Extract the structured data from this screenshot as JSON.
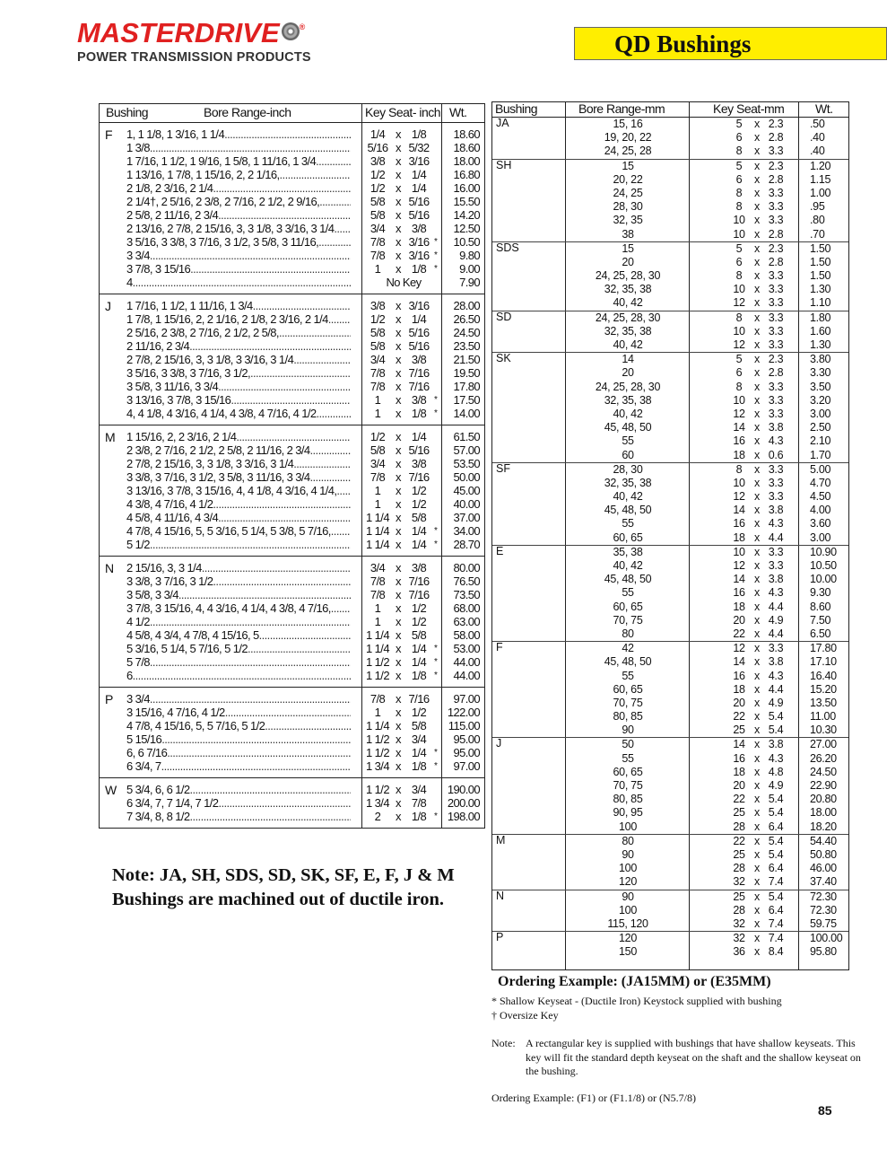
{
  "logo": {
    "brand": "MASTERDRIVE",
    "tagline": "POWER TRANSMISSION PRODUCTS",
    "brand_color": "#e02020"
  },
  "title": "QD Bushings",
  "title_bg": "#ffee00",
  "inch_table": {
    "headers": {
      "bushing": "Bushing",
      "bore": "Bore Range-inch",
      "key": "Key Seat- inch",
      "wt": "Wt."
    },
    "groups": [
      {
        "code": "F",
        "rows": [
          {
            "bore": "1, 1 1/8, 1 3/16, 1 1/4",
            "k1": "1/4",
            "k2": "1/8",
            "wt": "18.60"
          },
          {
            "bore": "1 3/8",
            "k1": "5/16",
            "k2": "5/32",
            "wt": "18.60"
          },
          {
            "bore": "1 7/16, 1 1/2, 1 9/16, 1 5/8, 1 11/16, 1 3/4",
            "k1": "3/8",
            "k2": "3/16",
            "wt": "18.00"
          },
          {
            "bore": "1 13/16, 1 7/8, 1 15/16, 2, 2 1/16,",
            "k1": "1/2",
            "k2": "1/4",
            "wt": "16.80"
          },
          {
            "bore": "2 1/8, 2 3/16, 2 1/4",
            "k1": "1/2",
            "k2": "1/4",
            "wt": "16.00"
          },
          {
            "bore": "2 1/4†, 2 5/16, 2 3/8, 2 7/16, 2 1/2, 2 9/16,",
            "k1": "5/8",
            "k2": "5/16",
            "wt": "15.50"
          },
          {
            "bore": "2 5/8, 2 11/16, 2 3/4",
            "k1": "5/8",
            "k2": "5/16",
            "wt": "14.20"
          },
          {
            "bore": "2 13/16, 2 7/8, 2 15/16, 3, 3 1/8, 3 3/16, 3 1/4",
            "k1": "3/4",
            "k2": "3/8",
            "wt": "12.50"
          },
          {
            "bore": "3 5/16, 3 3/8, 3 7/16, 3 1/2, 3 5/8, 3 11/16,",
            "k1": "7/8",
            "k2": "3/16",
            "star": "*",
            "wt": "10.50"
          },
          {
            "bore": "3 3/4",
            "k1": "7/8",
            "k2": "3/16",
            "star": "*",
            "wt": "9.80"
          },
          {
            "bore": "3 7/8, 3 15/16",
            "k1": "1",
            "k2": "1/8",
            "star": "*",
            "wt": "9.00"
          },
          {
            "bore": "4",
            "nokey": "No Key",
            "wt": "7.90"
          }
        ]
      },
      {
        "code": "J",
        "rows": [
          {
            "bore": "1 7/16, 1 1/2, 1 11/16, 1 3/4",
            "k1": "3/8",
            "k2": "3/16",
            "wt": "28.00"
          },
          {
            "bore": "1 7/8, 1 15/16, 2, 2 1/16, 2 1/8, 2 3/16, 2 1/4",
            "k1": "1/2",
            "k2": "1/4",
            "wt": "26.50"
          },
          {
            "bore": "2 5/16, 2 3/8, 2 7/16, 2 1/2, 2 5/8,",
            "k1": "5/8",
            "k2": "5/16",
            "wt": "24.50"
          },
          {
            "bore": "2 11/16, 2 3/4",
            "k1": "5/8",
            "k2": "5/16",
            "wt": "23.50"
          },
          {
            "bore": "2 7/8, 2 15/16, 3, 3 1/8, 3 3/16, 3 1/4",
            "k1": "3/4",
            "k2": "3/8",
            "wt": "21.50"
          },
          {
            "bore": "3 5/16, 3 3/8, 3 7/16, 3 1/2,",
            "k1": "7/8",
            "k2": "7/16",
            "wt": "19.50"
          },
          {
            "bore": "3 5/8, 3 11/16, 3 3/4",
            "k1": "7/8",
            "k2": "7/16",
            "wt": "17.80"
          },
          {
            "bore": "3 13/16, 3 7/8, 3 15/16",
            "k1": "1",
            "k2": "3/8",
            "star": "*",
            "wt": "17.50"
          },
          {
            "bore": "4, 4 1/8, 4 3/16, 4 1/4, 4 3/8, 4 7/16, 4 1/2",
            "k1": "1",
            "k2": "1/8",
            "star": "*",
            "wt": "14.00"
          }
        ]
      },
      {
        "code": "M",
        "rows": [
          {
            "bore": "1 15/16, 2, 2 3/16, 2 1/4",
            "k1": "1/2",
            "k2": "1/4",
            "wt": "61.50"
          },
          {
            "bore": "2 3/8, 2 7/16, 2 1/2, 2 5/8, 2 11/16, 2 3/4",
            "k1": "5/8",
            "k2": "5/16",
            "wt": "57.00"
          },
          {
            "bore": "2 7/8, 2 15/16, 3, 3 1/8, 3 3/16, 3 1/4",
            "k1": "3/4",
            "k2": "3/8",
            "wt": "53.50"
          },
          {
            "bore": "3 3/8, 3 7/16, 3 1/2, 3 5/8, 3 11/16, 3 3/4",
            "k1": "7/8",
            "k2": "7/16",
            "wt": "50.00"
          },
          {
            "bore": "3 13/16, 3 7/8, 3 15/16, 4, 4 1/8, 4 3/16, 4 1/4,",
            "k1": "1",
            "k2": "1/2",
            "wt": "45.00"
          },
          {
            "bore": "4 3/8, 4 7/16, 4 1/2",
            "k1": "1",
            "k2": "1/2",
            "wt": "40.00"
          },
          {
            "bore": "4 5/8, 4 11/16, 4 3/4",
            "k1": "1 1/4",
            "k2": "5/8",
            "wt": "37.00"
          },
          {
            "bore": "4 7/8, 4 15/16, 5, 5 3/16, 5 1/4, 5 3/8, 5 7/16,",
            "k1": "1 1/4",
            "k2": "1/4",
            "star": "*",
            "wt": "34.00"
          },
          {
            "bore": "5 1/2",
            "k1": "1 1/4",
            "k2": "1/4",
            "star": "*",
            "wt": "28.70"
          }
        ]
      },
      {
        "code": "N",
        "rows": [
          {
            "bore": "2 15/16, 3, 3 1/4",
            "k1": "3/4",
            "k2": "3/8",
            "wt": "80.00"
          },
          {
            "bore": "3 3/8, 3 7/16, 3 1/2",
            "k1": "7/8",
            "k2": "7/16",
            "wt": "76.50"
          },
          {
            "bore": "3 5/8, 3 3/4",
            "k1": "7/8",
            "k2": "7/16",
            "wt": "73.50"
          },
          {
            "bore": "3 7/8, 3 15/16, 4, 4 3/16, 4 1/4, 4 3/8, 4 7/16,",
            "k1": "1",
            "k2": "1/2",
            "wt": "68.00"
          },
          {
            "bore": "4 1/2",
            "k1": "1",
            "k2": "1/2",
            "wt": "63.00"
          },
          {
            "bore": "4 5/8, 4 3/4, 4 7/8, 4 15/16, 5",
            "k1": "1 1/4",
            "k2": "5/8",
            "wt": "58.00"
          },
          {
            "bore": "5 3/16, 5 1/4, 5 7/16, 5 1/2",
            "k1": "1 1/4",
            "k2": "1/4",
            "star": "*",
            "wt": "53.00"
          },
          {
            "bore": "5 7/8",
            "k1": "1 1/2",
            "k2": "1/4",
            "star": "*",
            "wt": "44.00"
          },
          {
            "bore": "6",
            "k1": "1 1/2",
            "k2": "1/8",
            "star": "*",
            "wt": "44.00"
          }
        ]
      },
      {
        "code": "P",
        "rows": [
          {
            "bore": "3 3/4",
            "k1": "7/8",
            "k2": "7/16",
            "wt": "97.00"
          },
          {
            "bore": "3 15/16, 4 7/16, 4 1/2",
            "k1": "1",
            "k2": "1/2",
            "wt": "122.00"
          },
          {
            "bore": "4 7/8, 4 15/16, 5, 5 7/16, 5 1/2",
            "k1": "1 1/4",
            "k2": "5/8",
            "wt": "115.00"
          },
          {
            "bore": "5 15/16",
            "k1": "1 1/2",
            "k2": "3/4",
            "wt": "95.00"
          },
          {
            "bore": "6, 6 7/16",
            "k1": "1 1/2",
            "k2": "1/4",
            "star": "*",
            "wt": "95.00"
          },
          {
            "bore": "6 3/4, 7",
            "k1": "1 3/4",
            "k2": "1/8",
            "star": "*",
            "wt": "97.00"
          }
        ]
      },
      {
        "code": "W",
        "rows": [
          {
            "bore": "5 3/4, 6, 6 1/2",
            "k1": "1 1/2",
            "k2": "3/4",
            "wt": "190.00"
          },
          {
            "bore": "6 3/4, 7, 7 1/4, 7 1/2",
            "k1": "1 3/4",
            "k2": "7/8",
            "wt": "200.00"
          },
          {
            "bore": "7 3/4, 8, 8 1/2",
            "k1": "2",
            "k2": "1/8",
            "star": "*",
            "wt": "198.00"
          }
        ]
      }
    ]
  },
  "mm_table": {
    "headers": {
      "bushing": "Bushing",
      "bore": "Bore Range-mm",
      "key": "Key Seat-mm",
      "wt": "Wt."
    },
    "groups": [
      {
        "code": "JA",
        "rows": [
          [
            "15, 16",
            "5",
            "2.3",
            ".50"
          ],
          [
            "19, 20, 22",
            "6",
            "2.8",
            ".40"
          ],
          [
            "24, 25, 28",
            "8",
            "3.3",
            ".40"
          ]
        ]
      },
      {
        "code": "SH",
        "rows": [
          [
            "15",
            "5",
            "2.3",
            "1.20"
          ],
          [
            "20, 22",
            "6",
            "2.8",
            "1.15"
          ],
          [
            "24, 25",
            "8",
            "3.3",
            "1.00"
          ],
          [
            "28, 30",
            "8",
            "3.3",
            ".95"
          ],
          [
            "32, 35",
            "10",
            "3.3",
            ".80"
          ],
          [
            "38",
            "10",
            "2.8",
            ".70"
          ]
        ]
      },
      {
        "code": "SDS",
        "rows": [
          [
            "15",
            "5",
            "2.3",
            "1.50"
          ],
          [
            "20",
            "6",
            "2.8",
            "1.50"
          ],
          [
            "24, 25, 28, 30",
            "8",
            "3.3",
            "1.50"
          ],
          [
            "32, 35, 38",
            "10",
            "3.3",
            "1.30"
          ],
          [
            "40, 42",
            "12",
            "3.3",
            "1.10"
          ]
        ]
      },
      {
        "code": "SD",
        "rows": [
          [
            "24, 25, 28, 30",
            "8",
            "3.3",
            "1.80"
          ],
          [
            "32, 35, 38",
            "10",
            "3.3",
            "1.60"
          ],
          [
            "40, 42",
            "12",
            "3.3",
            "1.30"
          ]
        ]
      },
      {
        "code": "SK",
        "rows": [
          [
            "14",
            "5",
            "2.3",
            "3.80"
          ],
          [
            "20",
            "6",
            "2.8",
            "3.30"
          ],
          [
            "24, 25, 28, 30",
            "8",
            "3.3",
            "3.50"
          ],
          [
            "32, 35, 38",
            "10",
            "3.3",
            "3.20"
          ],
          [
            "40, 42",
            "12",
            "3.3",
            "3.00"
          ],
          [
            "45, 48, 50",
            "14",
            "3.8",
            "2.50"
          ],
          [
            "55",
            "16",
            "4.3",
            "2.10"
          ],
          [
            "60",
            "18",
            "0.6",
            "1.70"
          ]
        ]
      },
      {
        "code": "SF",
        "rows": [
          [
            "28, 30",
            "8",
            "3.3",
            "5.00"
          ],
          [
            "32, 35, 38",
            "10",
            "3.3",
            "4.70"
          ],
          [
            "40, 42",
            "12",
            "3.3",
            "4.50"
          ],
          [
            "45, 48, 50",
            "14",
            "3.8",
            "4.00"
          ],
          [
            "55",
            "16",
            "4.3",
            "3.60"
          ],
          [
            "60, 65",
            "18",
            "4.4",
            "3.00"
          ]
        ]
      },
      {
        "code": "E",
        "rows": [
          [
            "35, 38",
            "10",
            "3.3",
            "10.90"
          ],
          [
            "40, 42",
            "12",
            "3.3",
            "10.50"
          ],
          [
            "45, 48, 50",
            "14",
            "3.8",
            "10.00"
          ],
          [
            "55",
            "16",
            "4.3",
            "9.30"
          ],
          [
            "60, 65",
            "18",
            "4.4",
            "8.60"
          ],
          [
            "70, 75",
            "20",
            "4.9",
            "7.50"
          ],
          [
            "80",
            "22",
            "4.4",
            "6.50"
          ]
        ]
      },
      {
        "code": "F",
        "rows": [
          [
            "42",
            "12",
            "3.3",
            "17.80"
          ],
          [
            "45, 48, 50",
            "14",
            "3.8",
            "17.10"
          ],
          [
            "55",
            "16",
            "4.3",
            "16.40"
          ],
          [
            "60, 65",
            "18",
            "4.4",
            "15.20"
          ],
          [
            "70, 75",
            "20",
            "4.9",
            "13.50"
          ],
          [
            "80, 85",
            "22",
            "5.4",
            "11.00"
          ],
          [
            "90",
            "25",
            "5.4",
            "10.30"
          ]
        ]
      },
      {
        "code": "J",
        "rows": [
          [
            "50",
            "14",
            "3.8",
            "27.00"
          ],
          [
            "55",
            "16",
            "4.3",
            "26.20"
          ],
          [
            "60, 65",
            "18",
            "4.8",
            "24.50"
          ],
          [
            "70, 75",
            "20",
            "4.9",
            "22.90"
          ],
          [
            "80, 85",
            "22",
            "5.4",
            "20.80"
          ],
          [
            "90, 95",
            "25",
            "5.4",
            "18.00"
          ],
          [
            "100",
            "28",
            "6.4",
            "18.20"
          ]
        ]
      },
      {
        "code": "M",
        "rows": [
          [
            "80",
            "22",
            "5.4",
            "54.40"
          ],
          [
            "90",
            "25",
            "5.4",
            "50.80"
          ],
          [
            "100",
            "28",
            "6.4",
            "46.00"
          ],
          [
            "120",
            "32",
            "7.4",
            "37.40"
          ]
        ]
      },
      {
        "code": "N",
        "rows": [
          [
            "90",
            "25",
            "5.4",
            "72.30"
          ],
          [
            "100",
            "28",
            "6.4",
            "72.30"
          ],
          [
            "115, 120",
            "32",
            "7.4",
            "59.75"
          ]
        ]
      },
      {
        "code": "P",
        "rows": [
          [
            "120",
            "32",
            "7.4",
            "100.00"
          ],
          [
            "150",
            "36",
            "8.4",
            "95.80"
          ]
        ]
      }
    ]
  },
  "note": "Note: JA, SH, SDS, SD, SK, SF, E, F, J & M Bushings are machined out of ductile iron.",
  "ordering_example_bold": "Ordering Example:   (JA15MM)  or (E35MM)",
  "footnotes": {
    "shallow": "*  Shallow Keyseat - (Ductile Iron) Keystock supplied with bushing",
    "oversize": "†  Oversize Key",
    "note_label": "Note:",
    "note_text": "A rectangular key is supplied with bushings that have shallow keyseats. This key will fit the standard depth keyseat on the shaft and the shallow keyseat on the bushing.",
    "ordering": "Ordering Example:    (F1)  or (F1.1/8)  or (N5.7/8)"
  },
  "page_number": "85"
}
